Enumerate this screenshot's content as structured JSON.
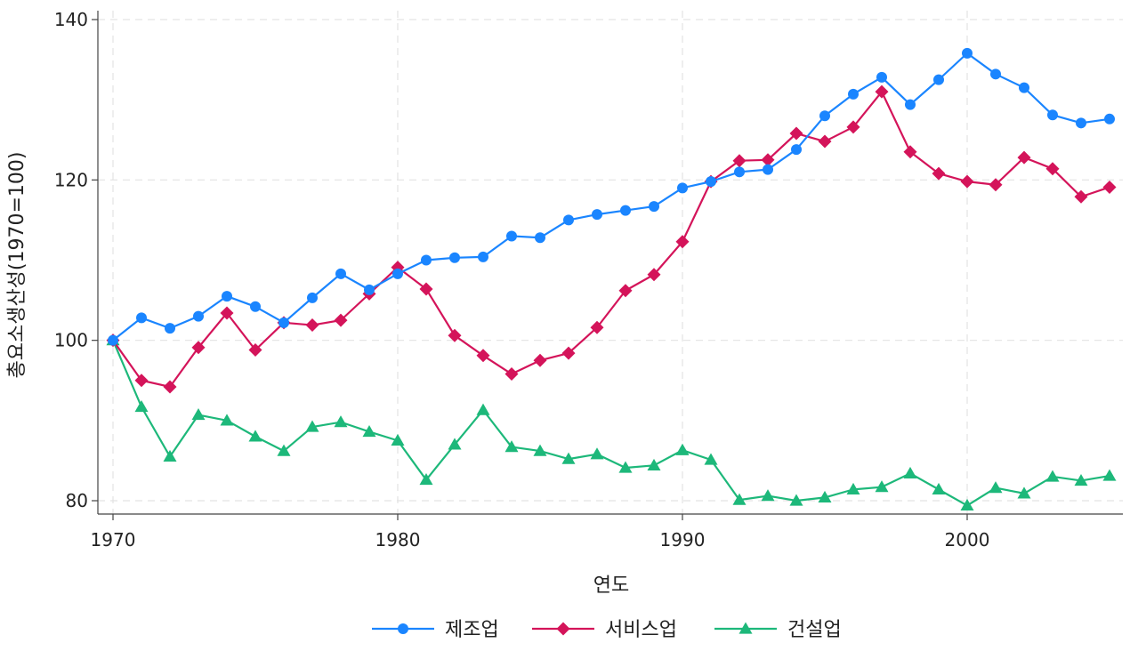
{
  "chart_data": {
    "type": "line",
    "title": "",
    "xlabel": "연도",
    "ylabel": "총요소생산성(1970=100)",
    "xlim": [
      1970,
      2005
    ],
    "ylim": [
      78,
      140
    ],
    "x_ticks": [
      1970,
      1980,
      1990,
      2000
    ],
    "y_ticks": [
      80,
      100,
      120,
      140
    ],
    "grid": true,
    "legend_position": "bottom",
    "x": [
      1970,
      1971,
      1972,
      1973,
      1974,
      1975,
      1976,
      1977,
      1978,
      1979,
      1980,
      1981,
      1982,
      1983,
      1984,
      1985,
      1986,
      1987,
      1988,
      1989,
      1990,
      1991,
      1992,
      1993,
      1994,
      1995,
      1996,
      1997,
      1998,
      1999,
      2000,
      2001,
      2002,
      2003,
      2004,
      2005
    ],
    "series": [
      {
        "name": "제조업",
        "color": "#1a85ff",
        "marker": "circle",
        "values": [
          100.0,
          102.8,
          101.5,
          103.0,
          105.5,
          104.2,
          102.2,
          105.3,
          108.3,
          106.3,
          108.3,
          110.0,
          110.3,
          110.4,
          113.0,
          112.8,
          115.0,
          115.7,
          116.2,
          116.7,
          119.0,
          119.8,
          121.0,
          121.3,
          123.8,
          128.0,
          130.7,
          132.8,
          129.4,
          132.5,
          135.8,
          133.2,
          131.5,
          128.1,
          127.1,
          127.6
        ]
      },
      {
        "name": "서비스업",
        "color": "#d4145a",
        "marker": "diamond",
        "values": [
          100.0,
          95.0,
          94.2,
          99.1,
          103.4,
          98.8,
          102.2,
          101.9,
          102.5,
          105.8,
          109.1,
          106.4,
          100.6,
          98.1,
          95.8,
          97.5,
          98.4,
          101.6,
          106.2,
          108.2,
          112.3,
          119.8,
          122.4,
          122.5,
          125.8,
          124.8,
          126.6,
          131.0,
          123.5,
          120.8,
          119.8,
          119.4,
          122.8,
          121.4,
          117.9,
          119.1
        ]
      },
      {
        "name": "건설업",
        "color": "#1db87a",
        "marker": "triangle",
        "values": [
          100.0,
          91.7,
          85.5,
          90.7,
          90.0,
          88.0,
          86.2,
          89.2,
          89.8,
          88.6,
          87.5,
          82.6,
          87.0,
          91.3,
          86.7,
          86.2,
          85.2,
          85.8,
          84.1,
          84.4,
          86.3,
          85.1,
          80.1,
          80.6,
          80.0,
          80.4,
          81.4,
          81.7,
          83.4,
          81.4,
          79.4,
          81.6,
          80.9,
          83.0,
          82.5,
          83.1
        ]
      }
    ]
  }
}
